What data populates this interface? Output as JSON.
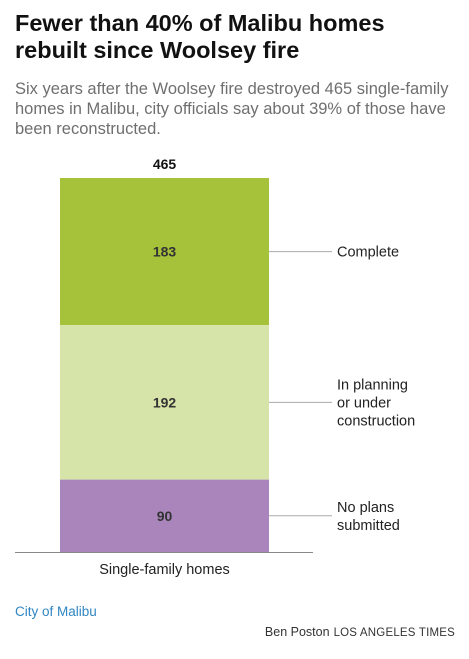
{
  "title": "Fewer than 40% of Malibu homes rebuilt since Woolsey fire",
  "subtitle": "Six years after the Woolsey fire destroyed 465 single-family homes in Malibu, city officials say about 39% of those have been reconstructed.",
  "source": "City of Malibu",
  "credit": {
    "author": "Ben Poston",
    "organization": "LOS ANGELES TIMES"
  },
  "colors": {
    "complete": "#a5c23a",
    "in_progress": "#d7e4a9",
    "no_plans": "#a985bb"
  },
  "chart_data": {
    "type": "bar",
    "stacked": true,
    "categories": [
      "Single-family homes"
    ],
    "total": 465,
    "ylim": [
      0,
      465
    ],
    "series": [
      {
        "name": "Complete",
        "label_lines": [
          "Complete"
        ],
        "values": [
          183
        ],
        "color": "#a5c23a"
      },
      {
        "name": "In planning or under construction",
        "label_lines": [
          "In planning",
          "or under",
          "construction"
        ],
        "values": [
          192
        ],
        "color": "#d7e4a9"
      },
      {
        "name": "No plans submitted",
        "label_lines": [
          "No plans",
          "submitted"
        ],
        "values": [
          90
        ],
        "color": "#a985bb"
      }
    ]
  }
}
